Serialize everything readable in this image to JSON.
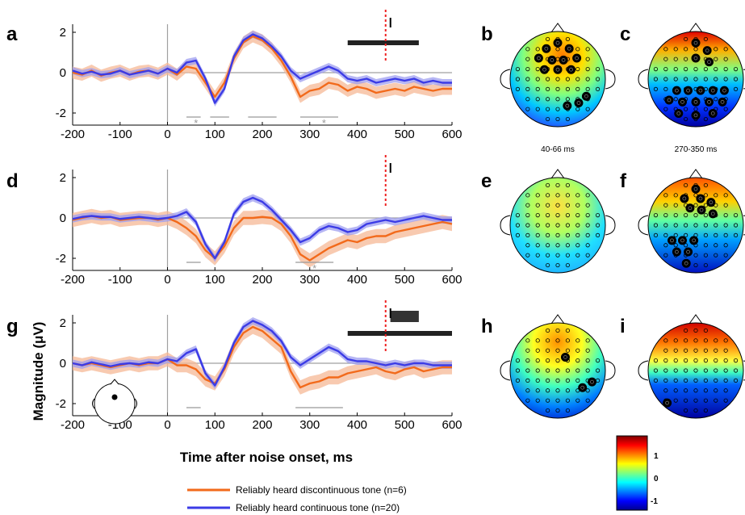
{
  "colors": {
    "discontinuous": "#f26a1b",
    "discontinuous_shade": "#f6b896",
    "continuous": "#3b3be6",
    "continuous_shade": "#9d9df0",
    "zero_line": "#a0a0a0",
    "marker_line": "#ee2222"
  },
  "xlabel": "Time after noise onset, ms",
  "ylabel": "Magnitude (μV)",
  "legend": [
    {
      "name": "Reliably heard discontinuous tone (n=6)",
      "color": "#f26a1b"
    },
    {
      "name": "Reliably heard continuous tone (n=20)",
      "color": "#3b3be6"
    }
  ],
  "colorbar": {
    "ticks": [
      "1",
      "0",
      "-1"
    ],
    "colormap": "jet"
  },
  "topo_labels": {
    "b": "40-66 ms",
    "c": "270-350 ms"
  },
  "chart_data": [
    {
      "type": "line",
      "panel": "a",
      "xlim": [
        -200,
        600
      ],
      "ylim": [
        -2.6,
        2.4
      ],
      "xticks": [
        -200,
        -100,
        0,
        100,
        200,
        300,
        400,
        500,
        600
      ],
      "yticks": [
        -2,
        0,
        2
      ],
      "series": [
        {
          "name": "Reliably heard discontinuous tone (n=6)",
          "color_key": "discontinuous",
          "x": [
            -200,
            -180,
            -160,
            -140,
            -120,
            -100,
            -80,
            -60,
            -40,
            -20,
            0,
            20,
            40,
            60,
            80,
            100,
            120,
            140,
            160,
            180,
            200,
            220,
            240,
            260,
            280,
            300,
            320,
            340,
            360,
            380,
            400,
            420,
            440,
            460,
            480,
            500,
            520,
            540,
            560,
            580,
            600
          ],
          "y": [
            0.0,
            -0.1,
            0.1,
            -0.15,
            0.0,
            0.1,
            -0.1,
            0.05,
            0.1,
            -0.05,
            0.2,
            -0.1,
            0.3,
            0.2,
            -0.5,
            -1.2,
            -0.5,
            0.7,
            1.5,
            1.8,
            1.6,
            1.2,
            0.6,
            -0.2,
            -1.2,
            -0.9,
            -0.8,
            -0.5,
            -0.6,
            -0.9,
            -0.7,
            -0.8,
            -1.0,
            -0.9,
            -0.8,
            -0.9,
            -0.7,
            -0.8,
            -0.9,
            -0.8,
            -0.8
          ],
          "ci": 0.3
        },
        {
          "name": "Reliably heard continuous tone (n=20)",
          "color_key": "continuous",
          "x": [
            -200,
            -180,
            -160,
            -140,
            -120,
            -100,
            -80,
            -60,
            -40,
            -20,
            0,
            20,
            40,
            60,
            80,
            100,
            120,
            140,
            160,
            180,
            200,
            220,
            240,
            260,
            280,
            300,
            320,
            340,
            360,
            380,
            400,
            420,
            440,
            460,
            480,
            500,
            520,
            540,
            560,
            580,
            600
          ],
          "y": [
            0.1,
            -0.05,
            0.05,
            -0.1,
            -0.05,
            0.1,
            -0.1,
            0.0,
            0.1,
            -0.05,
            0.2,
            0.0,
            0.5,
            0.6,
            -0.3,
            -1.5,
            -0.8,
            0.8,
            1.6,
            1.9,
            1.7,
            1.3,
            0.8,
            0.1,
            -0.3,
            -0.1,
            0.1,
            0.3,
            0.1,
            -0.3,
            -0.4,
            -0.3,
            -0.5,
            -0.4,
            -0.3,
            -0.4,
            -0.3,
            -0.5,
            -0.4,
            -0.5,
            -0.5
          ],
          "ci": 0.18
        }
      ],
      "significance_bars": [
        [
          40,
          70
        ],
        [
          90,
          130
        ],
        [
          170,
          230
        ],
        [
          280,
          360
        ]
      ],
      "stars_at": [
        60,
        330
      ],
      "black_band": [
        380,
        530
      ],
      "marker_x": 460
    },
    {
      "type": "line",
      "panel": "d",
      "xlim": [
        -200,
        600
      ],
      "ylim": [
        -2.6,
        2.4
      ],
      "xticks": [
        -200,
        -100,
        0,
        100,
        200,
        300,
        400,
        500,
        600
      ],
      "yticks": [
        -2,
        0,
        2
      ],
      "series": [
        {
          "name": "Reliably heard discontinuous tone (n=6)",
          "color_key": "discontinuous",
          "x": [
            -200,
            -180,
            -160,
            -140,
            -120,
            -100,
            -80,
            -60,
            -40,
            -20,
            0,
            20,
            40,
            60,
            80,
            100,
            120,
            140,
            160,
            180,
            200,
            220,
            240,
            260,
            280,
            300,
            320,
            340,
            360,
            380,
            400,
            420,
            440,
            460,
            480,
            500,
            520,
            540,
            560,
            580,
            600
          ],
          "y": [
            -0.1,
            0.0,
            0.1,
            0.0,
            0.05,
            -0.1,
            -0.05,
            0.0,
            0.0,
            -0.1,
            0.0,
            -0.2,
            -0.5,
            -0.9,
            -1.6,
            -2.0,
            -1.4,
            -0.5,
            0.0,
            0.0,
            0.05,
            0.0,
            -0.3,
            -0.9,
            -1.8,
            -2.1,
            -1.8,
            -1.5,
            -1.3,
            -1.1,
            -1.2,
            -1.0,
            -0.9,
            -0.9,
            -0.7,
            -0.6,
            -0.5,
            -0.4,
            -0.3,
            -0.2,
            -0.3
          ],
          "ci": 0.35
        },
        {
          "name": "Reliably heard continuous tone (n=20)",
          "color_key": "continuous",
          "x": [
            -200,
            -180,
            -160,
            -140,
            -120,
            -100,
            -80,
            -60,
            -40,
            -20,
            0,
            20,
            40,
            60,
            80,
            100,
            120,
            140,
            160,
            180,
            200,
            220,
            240,
            260,
            280,
            300,
            320,
            340,
            360,
            380,
            400,
            420,
            440,
            460,
            480,
            500,
            520,
            540,
            560,
            580,
            600
          ],
          "y": [
            -0.05,
            0.05,
            0.1,
            0.05,
            0.05,
            -0.05,
            0.0,
            0.05,
            0.0,
            -0.05,
            0.0,
            0.1,
            0.3,
            -0.2,
            -1.3,
            -2.0,
            -1.2,
            0.2,
            0.8,
            1.0,
            0.8,
            0.4,
            -0.1,
            -0.6,
            -1.2,
            -1.0,
            -0.6,
            -0.4,
            -0.5,
            -0.7,
            -0.6,
            -0.3,
            -0.2,
            -0.1,
            -0.2,
            -0.1,
            0.0,
            0.1,
            0.0,
            -0.1,
            -0.1
          ],
          "ci": 0.18
        }
      ],
      "significance_bars": [
        [
          40,
          70
        ],
        [
          270,
          350
        ]
      ],
      "stars_at": [
        310
      ],
      "black_band": null,
      "marker_x": 460
    },
    {
      "type": "line",
      "panel": "g",
      "xlim": [
        -200,
        600
      ],
      "ylim": [
        -2.6,
        2.4
      ],
      "xticks": [
        -200,
        -100,
        0,
        100,
        200,
        300,
        400,
        500,
        600
      ],
      "yticks": [
        -2,
        0,
        2
      ],
      "series": [
        {
          "name": "Reliably heard discontinuous tone (n=6)",
          "color_key": "discontinuous",
          "x": [
            -200,
            -180,
            -160,
            -140,
            -120,
            -100,
            -80,
            -60,
            -40,
            -20,
            0,
            20,
            40,
            60,
            80,
            100,
            120,
            140,
            160,
            180,
            200,
            220,
            240,
            260,
            280,
            300,
            320,
            340,
            360,
            380,
            400,
            420,
            440,
            460,
            480,
            500,
            520,
            540,
            560,
            580,
            600
          ],
          "y": [
            0.0,
            -0.1,
            0.0,
            -0.1,
            -0.2,
            -0.1,
            0.0,
            -0.1,
            0.0,
            0.0,
            0.2,
            -0.1,
            -0.1,
            -0.3,
            -0.8,
            -1.0,
            -0.3,
            0.8,
            1.5,
            1.8,
            1.6,
            1.2,
            0.8,
            -0.4,
            -1.2,
            -1.0,
            -0.9,
            -0.7,
            -0.7,
            -0.5,
            -0.4,
            -0.3,
            -0.2,
            -0.4,
            -0.5,
            -0.3,
            -0.2,
            -0.4,
            -0.3,
            -0.2,
            -0.2
          ],
          "ci": 0.35
        },
        {
          "name": "Reliably heard continuous tone (n=20)",
          "color_key": "continuous",
          "x": [
            -200,
            -180,
            -160,
            -140,
            -120,
            -100,
            -80,
            -60,
            -40,
            -20,
            0,
            20,
            40,
            60,
            80,
            100,
            120,
            140,
            160,
            180,
            200,
            220,
            240,
            260,
            280,
            300,
            320,
            340,
            360,
            380,
            400,
            420,
            440,
            460,
            480,
            500,
            520,
            540,
            560,
            580,
            600
          ],
          "y": [
            0.0,
            -0.1,
            0.05,
            -0.05,
            -0.15,
            -0.05,
            0.0,
            -0.05,
            0.05,
            0.0,
            0.2,
            0.1,
            0.5,
            0.7,
            -0.5,
            -1.1,
            -0.2,
            1.0,
            1.8,
            2.1,
            1.9,
            1.6,
            1.1,
            0.3,
            -0.1,
            0.2,
            0.5,
            0.8,
            0.6,
            0.2,
            0.1,
            0.1,
            0.0,
            -0.1,
            0.0,
            -0.1,
            0.0,
            0.0,
            -0.1,
            -0.1,
            -0.1
          ],
          "ci": 0.18
        }
      ],
      "significance_bars": [
        [
          40,
          70
        ],
        [
          270,
          370
        ]
      ],
      "stars_at": [],
      "black_band": [
        380,
        600
      ],
      "black_band_upper": [
        470,
        530
      ],
      "marker_x": 460
    }
  ]
}
